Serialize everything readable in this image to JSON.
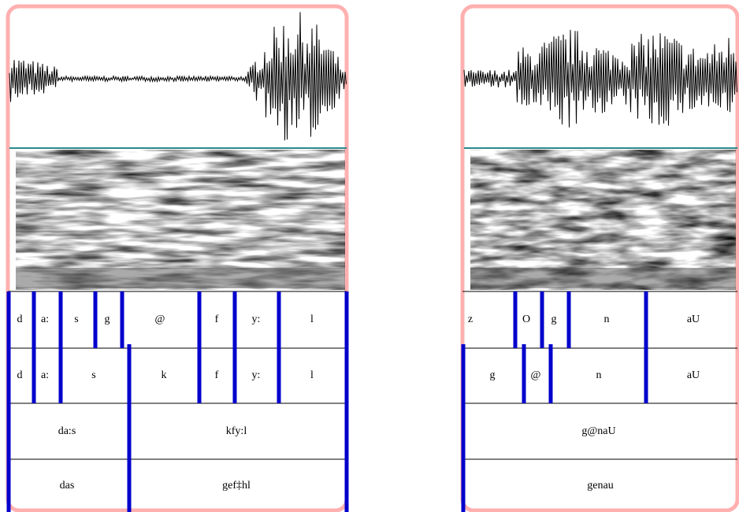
{
  "panels": [
    {
      "tiers": [
        [
          "d",
          "a:",
          "s",
          "g",
          "@",
          "f",
          "y:",
          "l"
        ],
        [
          "d",
          "a:",
          "s",
          "k",
          "f",
          "y:",
          "l"
        ],
        [
          "da:s",
          "kfy:l"
        ],
        [
          "das",
          "gef‡hl"
        ]
      ]
    },
    {
      "tiers": [
        [
          "z",
          "O",
          "g",
          "n",
          "aU"
        ],
        [
          "g",
          "@",
          "n",
          "aU"
        ],
        [
          "g@naU"
        ],
        [
          "genau"
        ]
      ]
    }
  ]
}
